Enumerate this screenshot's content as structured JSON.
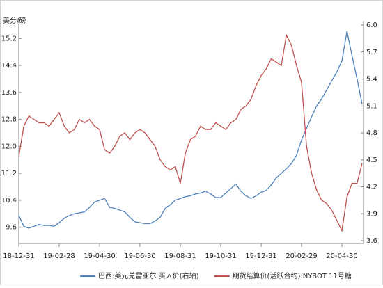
{
  "chart_data": {
    "type": "line",
    "y_label": "美分/磅",
    "categories": [
      "18-12-31",
      null,
      null,
      null,
      null,
      null,
      null,
      null,
      "19-02-28",
      null,
      null,
      null,
      null,
      null,
      null,
      null,
      "19-04-30",
      null,
      null,
      null,
      null,
      null,
      null,
      null,
      "19-06-30",
      null,
      null,
      null,
      null,
      null,
      null,
      null,
      "19-08-31",
      null,
      null,
      null,
      null,
      null,
      null,
      null,
      "19-10-31",
      null,
      null,
      null,
      null,
      null,
      null,
      null,
      "19-12-31",
      null,
      null,
      null,
      null,
      null,
      null,
      null,
      "20-02-29",
      null,
      null,
      null,
      null,
      null,
      null,
      null,
      "20-04-30",
      null,
      null,
      null,
      null
    ],
    "series": [
      {
        "name": "巴西:美元兑雷亚尔:买入价(右轴)",
        "color": "#4f81bd",
        "axis": "y2",
        "values": [
          3.88,
          3.76,
          3.74,
          3.76,
          3.78,
          3.77,
          3.77,
          3.76,
          3.8,
          3.85,
          3.88,
          3.9,
          3.91,
          3.92,
          3.97,
          4.03,
          4.05,
          4.07,
          3.97,
          3.96,
          3.94,
          3.92,
          3.86,
          3.81,
          3.8,
          3.79,
          3.79,
          3.82,
          3.86,
          3.96,
          4.0,
          4.05,
          4.07,
          4.09,
          4.1,
          4.12,
          4.13,
          4.15,
          4.12,
          4.08,
          4.08,
          4.13,
          4.18,
          4.23,
          4.15,
          4.1,
          4.07,
          4.1,
          4.14,
          4.16,
          4.22,
          4.3,
          4.35,
          4.4,
          4.46,
          4.55,
          4.72,
          4.85,
          4.98,
          5.1,
          5.18,
          5.28,
          5.38,
          5.48,
          5.6,
          5.93,
          5.66,
          5.4,
          5.12
        ]
      },
      {
        "name": "期货结算价(活跃合约):NYBOT 11号糖",
        "color": "#c0504d",
        "values": [
          11.7,
          12.6,
          12.9,
          12.8,
          12.7,
          12.7,
          12.6,
          12.8,
          13.0,
          12.6,
          12.4,
          12.5,
          12.8,
          12.7,
          12.8,
          12.6,
          12.5,
          11.9,
          11.8,
          12.0,
          12.3,
          12.4,
          12.2,
          12.4,
          12.5,
          12.4,
          12.2,
          12.0,
          11.6,
          11.4,
          11.3,
          11.4,
          10.9,
          11.8,
          12.2,
          12.3,
          12.6,
          12.5,
          12.5,
          12.7,
          12.6,
          12.5,
          12.7,
          12.8,
          13.1,
          13.2,
          13.4,
          13.8,
          14.1,
          14.3,
          14.6,
          14.5,
          14.4,
          15.3,
          15.0,
          14.4,
          13.9,
          12.0,
          11.2,
          10.7,
          10.4,
          10.3,
          10.1,
          9.8,
          9.5,
          10.5,
          10.9,
          10.9,
          11.5
        ]
      }
    ],
    "ylim": [
      9.2,
      15.6
    ],
    "yticks": [
      {
        "value": 9.6,
        "label": "9.6"
      },
      {
        "value": 10.4,
        "label": "10.4"
      },
      {
        "value": 11.2,
        "label": "11.2"
      },
      {
        "value": 12,
        "label": "12.0"
      },
      {
        "value": 12.8,
        "label": "12.8"
      },
      {
        "value": 13.6,
        "label": "13.6"
      },
      {
        "value": 14.4,
        "label": "14.4"
      },
      {
        "value": 15.2,
        "label": "15.2"
      }
    ],
    "y2lim": [
      3.6,
      6.0
    ],
    "y2ticks": [
      {
        "value": 3.6,
        "label": "3.6"
      },
      {
        "value": 3.9,
        "label": "3.9"
      },
      {
        "value": 4.2,
        "label": "4.2"
      },
      {
        "value": 4.5,
        "label": "4.5"
      },
      {
        "value": 4.8,
        "label": "4.8"
      },
      {
        "value": 5.1,
        "label": "5.1"
      },
      {
        "value": 5.4,
        "label": "5.4"
      },
      {
        "value": 5.7,
        "label": "5.7"
      },
      {
        "value": 6,
        "label": "6.0"
      }
    ],
    "grid": false,
    "legend": "bottom"
  }
}
